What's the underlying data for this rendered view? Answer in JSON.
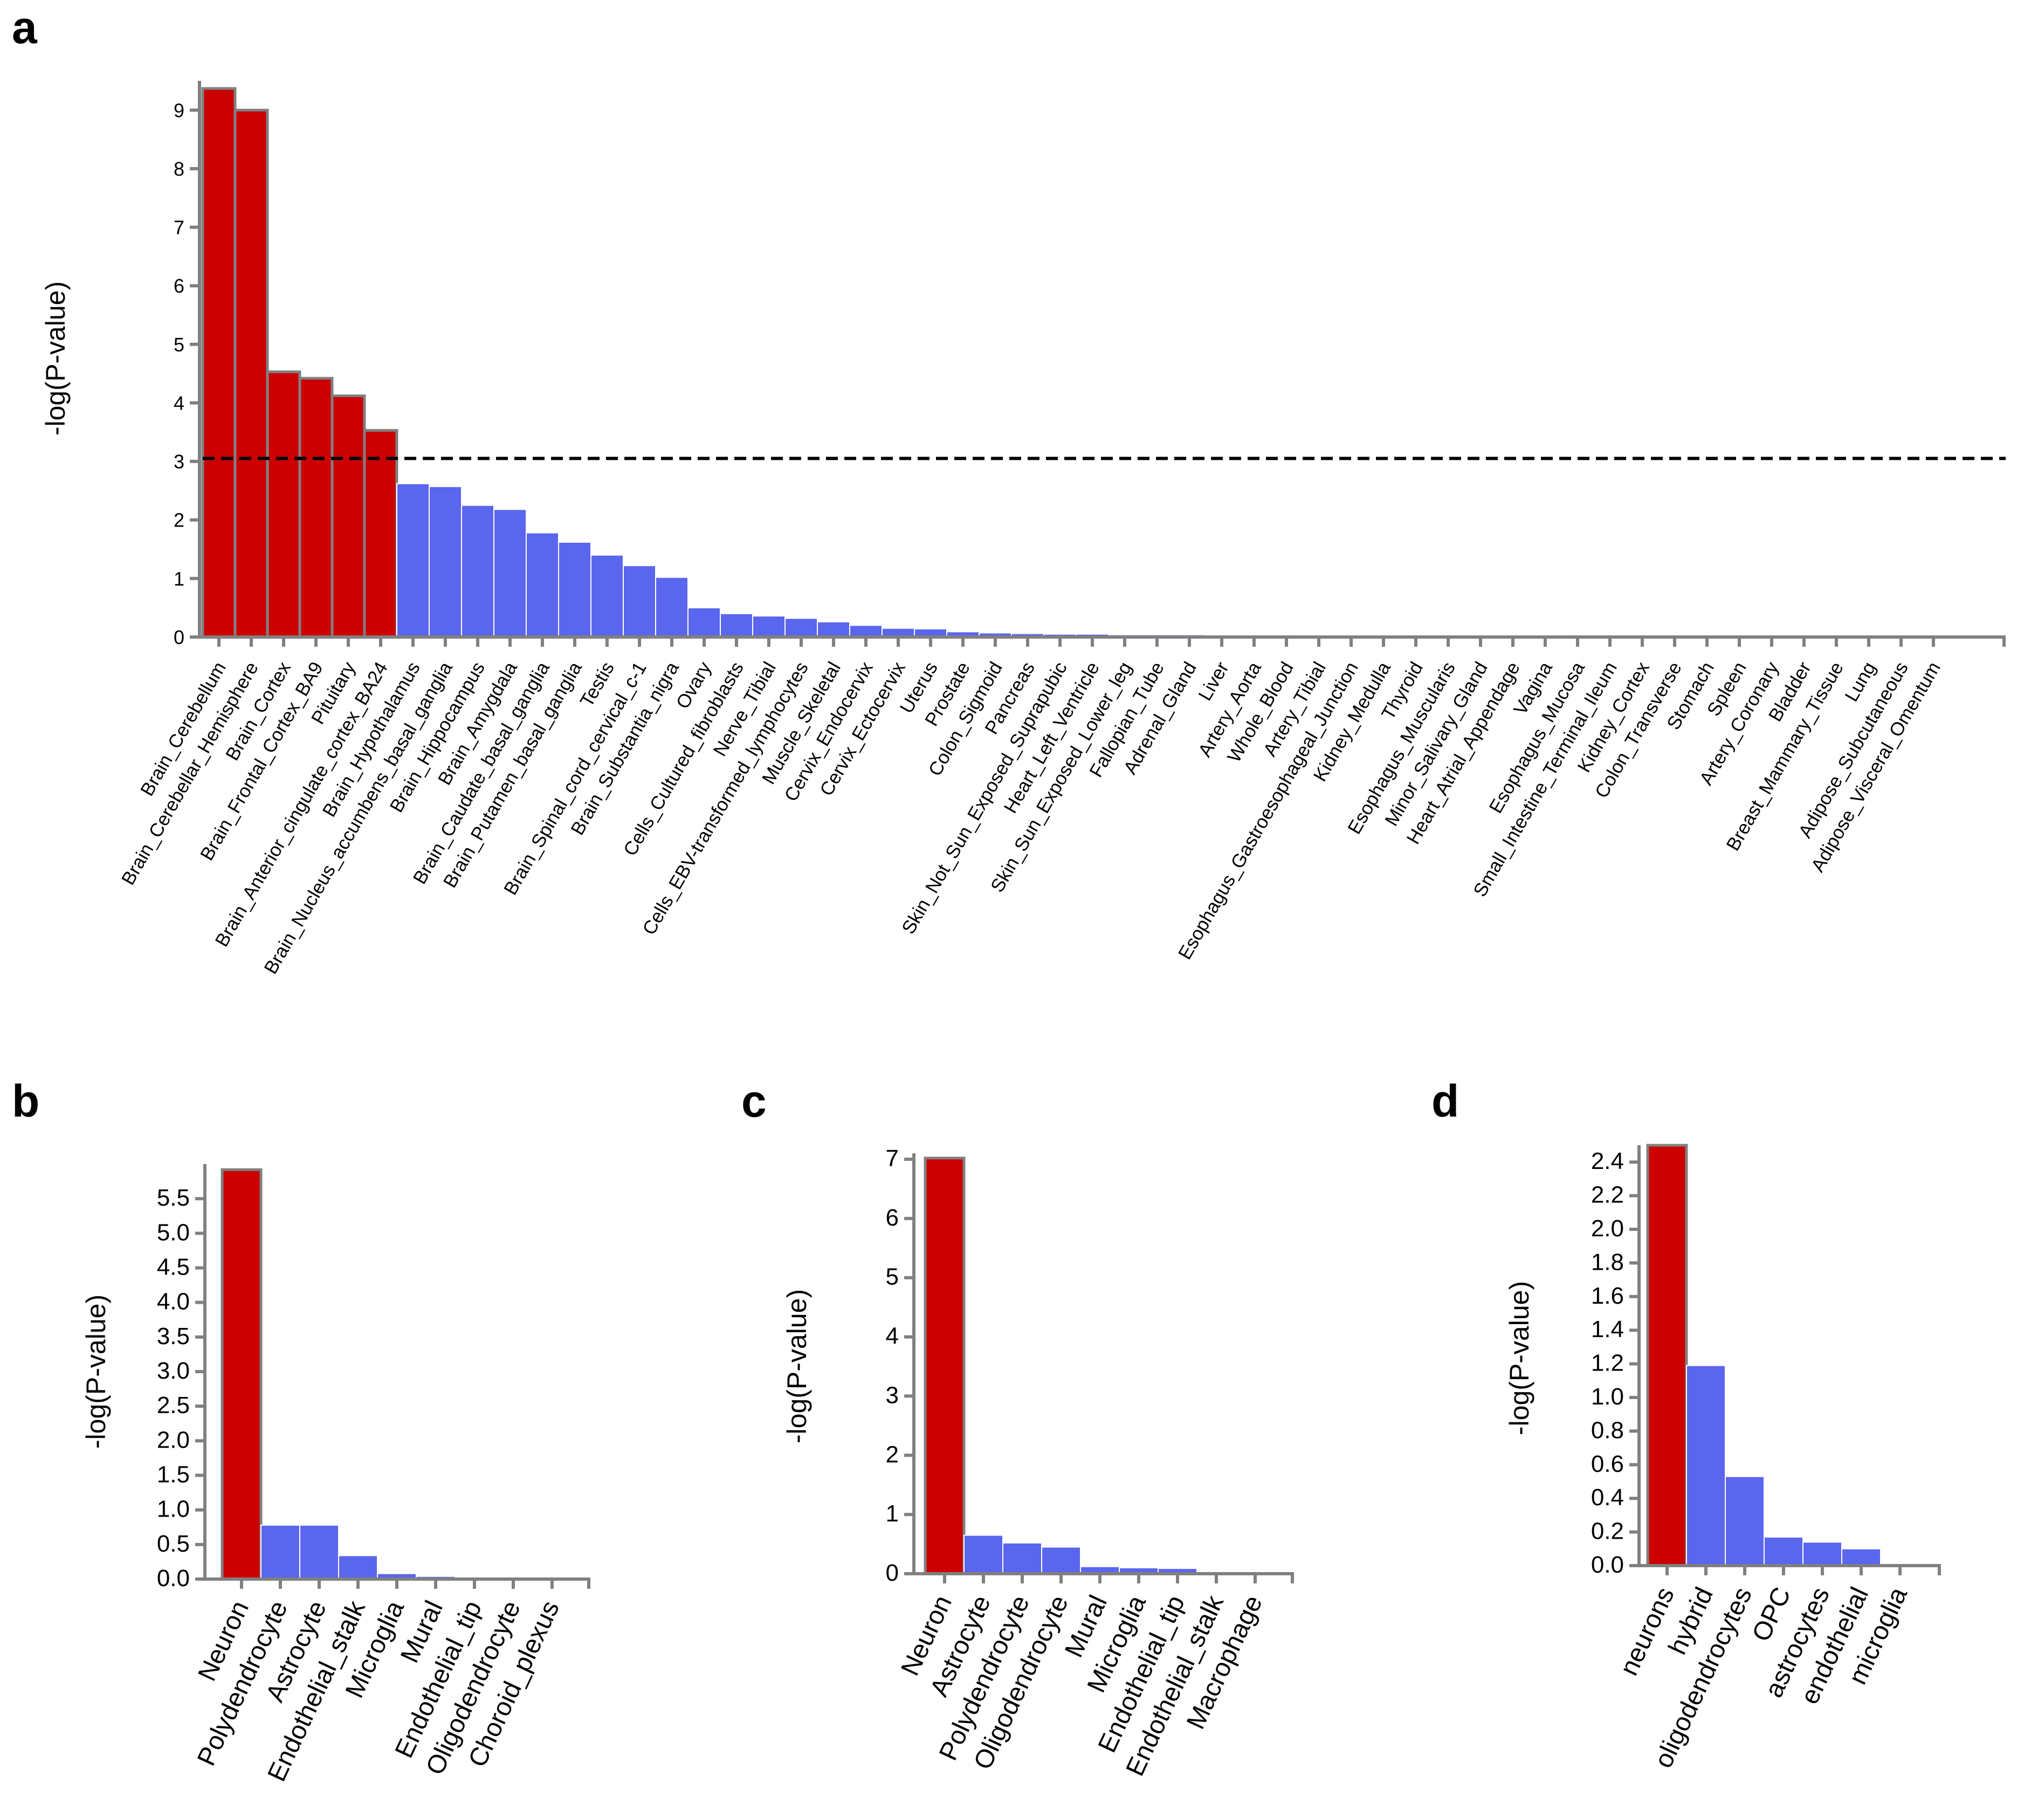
{
  "colors": {
    "significant": "#cc0000",
    "other": "#5a66ee",
    "bar_edge": "#808080",
    "threshold": "#000000"
  },
  "chart_data": [
    {
      "panel": "a",
      "type": "bar",
      "ylabel": "-log(P-value)",
      "xlabel": "",
      "ylim": [
        0,
        9.5
      ],
      "yticks": [
        "0",
        "1",
        "2",
        "3",
        "4",
        "5",
        "6",
        "7",
        "8",
        "9"
      ],
      "threshold": 3.05,
      "categories": [
        "Brain_Cerebellum",
        "Brain_Cerebellar_Hemisphere",
        "Brain_Cortex",
        "Brain_Frontal_Cortex_BA9",
        "Pituitary",
        "Brain_Anterior_cingulate_cortex_BA24",
        "Brain_Hypothalamus",
        "Brain_Nucleus_accumbens_basal_ganglia",
        "Brain_Hippocampus",
        "Brain_Amygdala",
        "Brain_Caudate_basal_ganglia",
        "Brain_Putamen_basal_ganglia",
        "Testis",
        "Brain_Spinal_cord_cervical_c-1",
        "Brain_Substantia_nigra",
        "Ovary",
        "Cells_Cultured_fibroblasts",
        "Nerve_Tibial",
        "Cells_EBV-transformed_lymphocytes",
        "Muscle_Skeletal",
        "Cervix_Endocervix",
        "Cervix_Ectocervix",
        "Uterus",
        "Prostate",
        "Colon_Sigmoid",
        "Pancreas",
        "Skin_Not_Sun_Exposed_Suprapubic",
        "Heart_Left_Ventricle",
        "Skin_Sun_Exposed_Lower_leg",
        "Fallopian_Tube",
        "Adrenal_Gland",
        "Liver",
        "Artery_Aorta",
        "Whole_Blood",
        "Artery_Tibial",
        "Esophagus_Gastroesophageal_Junction",
        "Kidney_Medulla",
        "Thyroid",
        "Esophagus_Muscularis",
        "Minor_Salivary_Gland",
        "Heart_Atrial_Appendage",
        "Vagina",
        "Esophagus_Mucosa",
        "Small_Intestine_Terminal_Ileum",
        "Kidney_Cortex",
        "Colon_Transverse",
        "Stomach",
        "Spleen",
        "Artery_Coronary",
        "Bladder",
        "Breast_Mammary_Tissue",
        "Lung",
        "Adipose_Subcutaneous",
        "Adipose_Visceral_Omentum"
      ],
      "values": [
        9.37,
        9.0,
        4.53,
        4.42,
        4.12,
        3.53,
        2.62,
        2.57,
        2.25,
        2.18,
        1.78,
        1.62,
        1.4,
        1.22,
        1.02,
        0.5,
        0.4,
        0.36,
        0.32,
        0.26,
        0.2,
        0.15,
        0.14,
        0.09,
        0.07,
        0.06,
        0.05,
        0.05,
        0.04,
        0.04,
        0.04,
        0.03,
        0.03,
        0.03,
        0.03,
        0.02,
        0.02,
        0.02,
        0.02,
        0.02,
        0.02,
        0.02,
        0.02,
        0.01,
        0.01,
        0.01,
        0.01,
        0.01,
        0.01,
        0.01,
        0.01,
        0.01,
        0.01,
        0.01
      ],
      "significant_count": 6
    },
    {
      "panel": "b",
      "type": "bar",
      "ylabel": "-log(P-value)",
      "xlabel": "",
      "ylim": [
        0,
        6
      ],
      "yticks": [
        "0.0",
        "0.5",
        "1.0",
        "1.5",
        "2.0",
        "2.5",
        "3.0",
        "3.5",
        "4.0",
        "4.5",
        "5.0",
        "5.5"
      ],
      "categories": [
        "Neuron",
        "Polydendrocyte",
        "Astrocyte",
        "Endothelial_stalk",
        "Microglia",
        "Mural",
        "Endothelial_tip",
        "Oligodendrocyte",
        "Choroid_plexus"
      ],
      "values": [
        5.92,
        0.78,
        0.78,
        0.34,
        0.08,
        0.04,
        0.02,
        0.01,
        0.01
      ],
      "significant_count": 1
    },
    {
      "panel": "c",
      "type": "bar",
      "ylabel": "-log(P-value)",
      "xlabel": "",
      "ylim": [
        0,
        7.1
      ],
      "yticks": [
        "0",
        "1",
        "2",
        "3",
        "4",
        "5",
        "6",
        "7"
      ],
      "categories": [
        "Neuron",
        "Astrocyte",
        "Polydendrocyte",
        "Oligodendrocyte",
        "Mural",
        "Microglia",
        "Endothelial_tip",
        "Endothelial_stalk",
        "Macrophage"
      ],
      "values": [
        7.02,
        0.65,
        0.52,
        0.45,
        0.12,
        0.1,
        0.09,
        0.01,
        0.01
      ],
      "significant_count": 1
    },
    {
      "panel": "d",
      "type": "bar",
      "ylabel": "-log(P-value)",
      "xlabel": "",
      "ylim": [
        0,
        2.5
      ],
      "yticks": [
        "0.0",
        "0.2",
        "0.4",
        "0.6",
        "0.8",
        "1.0",
        "1.2",
        "1.4",
        "1.6",
        "1.8",
        "2.0",
        "2.2",
        "2.4"
      ],
      "categories": [
        "neurons",
        "hybrid",
        "oligodendrocytes",
        "OPC",
        "astrocytes",
        "endothelial",
        "microglia"
      ],
      "values": [
        2.5,
        1.19,
        0.53,
        0.17,
        0.14,
        0.1,
        0.0
      ],
      "significant_count": 1
    }
  ]
}
